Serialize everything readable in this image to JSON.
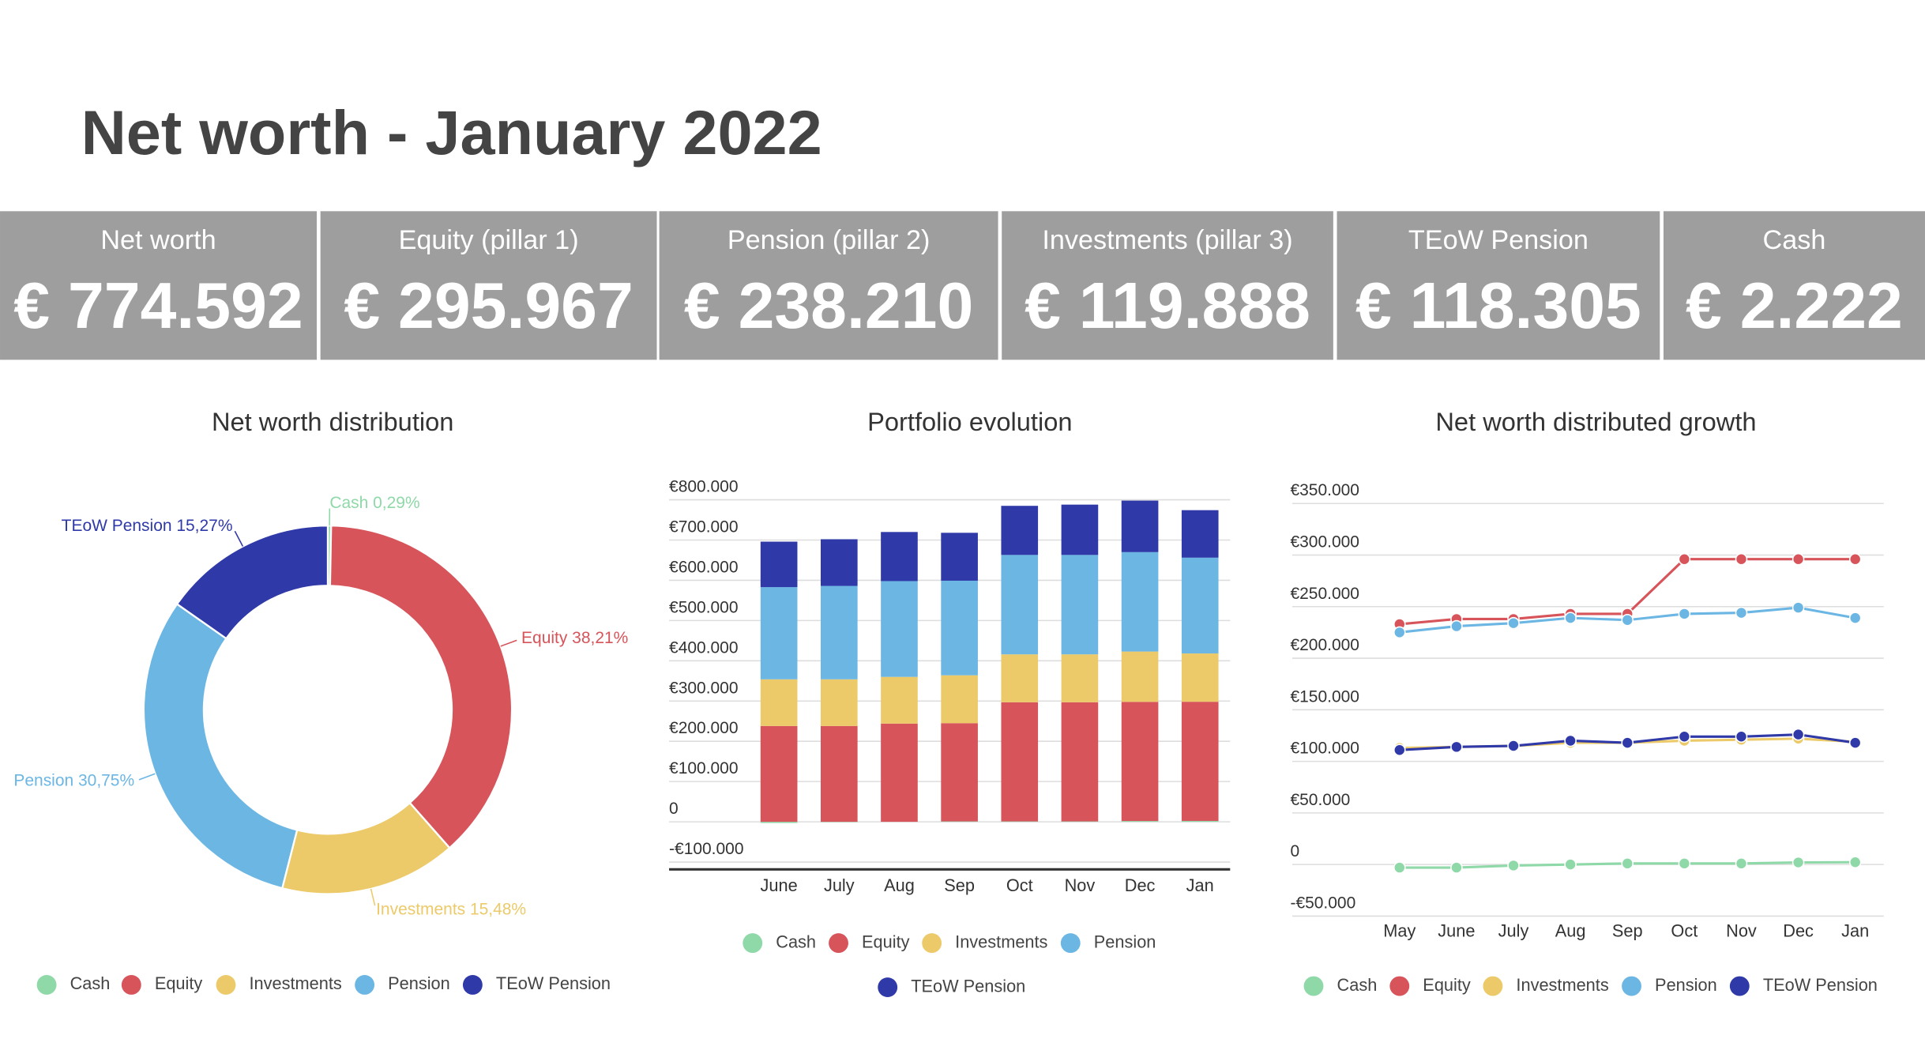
{
  "title": "Net worth - January 2022",
  "kpis": [
    {
      "label": "Net worth",
      "value": "€ 774.592"
    },
    {
      "label": "Equity (pillar 1)",
      "value": "€ 295.967"
    },
    {
      "label": "Pension (pillar 2)",
      "value": "€ 238.210"
    },
    {
      "label": "Investments (pillar 3)",
      "value": "€ 119.888"
    },
    {
      "label": "TEoW Pension",
      "value": "€ 118.305"
    },
    {
      "label": "Cash",
      "value": "€ 2.222"
    }
  ],
  "chart_data": [
    {
      "type": "pie",
      "donut": true,
      "title": "Net worth distribution",
      "categories": [
        "Cash",
        "Equity",
        "Investments",
        "Pension",
        "TEoW Pension"
      ],
      "values": [
        0.29,
        38.21,
        15.48,
        30.75,
        15.27
      ],
      "value_labels": [
        "Cash 0,29%",
        "Equity 38,21%",
        "Investments 15,48%",
        "Pension 30,75%",
        "TEoW Pension 15,27%"
      ],
      "colors": [
        "#8fd8a8",
        "#d6545a",
        "#ecca6a",
        "#6cb6e4",
        "#2f39a8"
      ]
    },
    {
      "type": "bar",
      "stacked": true,
      "title": "Portfolio evolution",
      "categories": [
        "June",
        "July",
        "Aug",
        "Sep",
        "Oct",
        "Nov",
        "Dec",
        "Jan"
      ],
      "series": [
        {
          "name": "Cash",
          "color": "#8fd8a8",
          "values": [
            -3000,
            -1000,
            0,
            1000,
            1000,
            1000,
            2000,
            2222
          ]
        },
        {
          "name": "Equity",
          "color": "#d6545a",
          "values": [
            238000,
            238000,
            244000,
            244000,
            296000,
            296000,
            296000,
            296000
          ]
        },
        {
          "name": "Investments",
          "color": "#ecca6a",
          "values": [
            116000,
            116000,
            116000,
            119000,
            119000,
            119000,
            125000,
            120000
          ]
        },
        {
          "name": "Pension",
          "color": "#6cb6e4",
          "values": [
            229000,
            232000,
            238000,
            235000,
            247000,
            247000,
            247000,
            238000
          ]
        },
        {
          "name": "TEoW Pension",
          "color": "#2f39a8",
          "values": [
            113000,
            116000,
            122000,
            119000,
            122000,
            125000,
            128000,
            118000
          ]
        }
      ],
      "ylim": [
        -100000,
        800000
      ],
      "yticks": [
        {
          "value": -100000,
          "label": "-€100.000"
        },
        0,
        {
          "value": 100000,
          "label": "€100.000"
        },
        {
          "value": 200000,
          "label": "€200.000"
        },
        {
          "value": 300000,
          "label": "€300.000"
        },
        {
          "value": 400000,
          "label": "€400.000"
        },
        {
          "value": 500000,
          "label": "€500.000"
        },
        {
          "value": 600000,
          "label": "€600.000"
        },
        {
          "value": 700000,
          "label": "€700.000"
        },
        {
          "value": 800000,
          "label": "€800.000"
        }
      ],
      "grid": true
    },
    {
      "type": "line",
      "title": "Net worth distributed growth",
      "categories": [
        "May",
        "June",
        "July",
        "Aug",
        "Sep",
        "Oct",
        "Nov",
        "Dec",
        "Jan"
      ],
      "series": [
        {
          "name": "Cash",
          "color": "#8fd8a8",
          "values": [
            -3000,
            -3000,
            -1000,
            0,
            1000,
            1000,
            1000,
            2000,
            2222
          ]
        },
        {
          "name": "Equity",
          "color": "#d6545a",
          "values": [
            233000,
            238000,
            238000,
            243000,
            243000,
            296000,
            296000,
            296000,
            296000
          ]
        },
        {
          "name": "Investments",
          "color": "#ecca6a",
          "values": [
            113000,
            114000,
            115000,
            118000,
            118000,
            120000,
            121000,
            122000,
            119000
          ]
        },
        {
          "name": "Pension",
          "color": "#6cb6e4",
          "values": [
            225000,
            231000,
            234000,
            239000,
            237000,
            243000,
            244000,
            249000,
            239000
          ]
        },
        {
          "name": "TEoW Pension",
          "color": "#2f39a8",
          "values": [
            111000,
            114000,
            115000,
            120000,
            118000,
            124000,
            124000,
            126000,
            118000
          ]
        }
      ],
      "ylim": [
        -50000,
        350000
      ],
      "yticks": [
        {
          "value": -50000,
          "label": "-€50.000"
        },
        0,
        {
          "value": 50000,
          "label": "€50.000"
        },
        {
          "value": 100000,
          "label": "€100.000"
        },
        {
          "value": 150000,
          "label": "€150.000"
        },
        {
          "value": 200000,
          "label": "€200.000"
        },
        {
          "value": 250000,
          "label": "€250.000"
        },
        {
          "value": 300000,
          "label": "€300.000"
        },
        {
          "value": 350000,
          "label": "€350.000"
        }
      ],
      "grid": true
    }
  ]
}
